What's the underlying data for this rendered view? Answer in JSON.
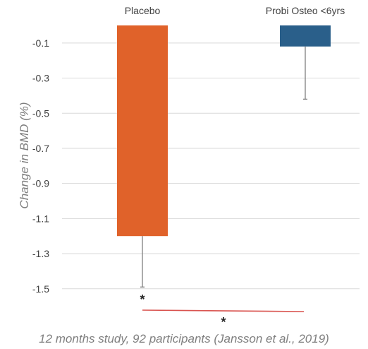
{
  "chart_data": {
    "type": "bar",
    "categories": [
      "Placebo",
      "Probi Osteo <6yrs"
    ],
    "values": [
      -1.2,
      -0.12
    ],
    "error_low": [
      -1.49,
      -0.42
    ],
    "colors": [
      "#e0622a",
      "#2a5f8a"
    ],
    "ylabel": "Change in BMD (%)",
    "yticks": [
      -0.1,
      -0.3,
      -0.5,
      -0.7,
      -0.9,
      -1.1,
      -1.3,
      -1.5
    ],
    "ylim": [
      -1.65,
      0.0
    ],
    "x_axis_position": "top",
    "grid": true,
    "significance_markers": [
      "*",
      "*"
    ],
    "significance_line_color": "#d9534f"
  },
  "caption": "12 months study, 92 participants (Jansson et al., 2019)"
}
